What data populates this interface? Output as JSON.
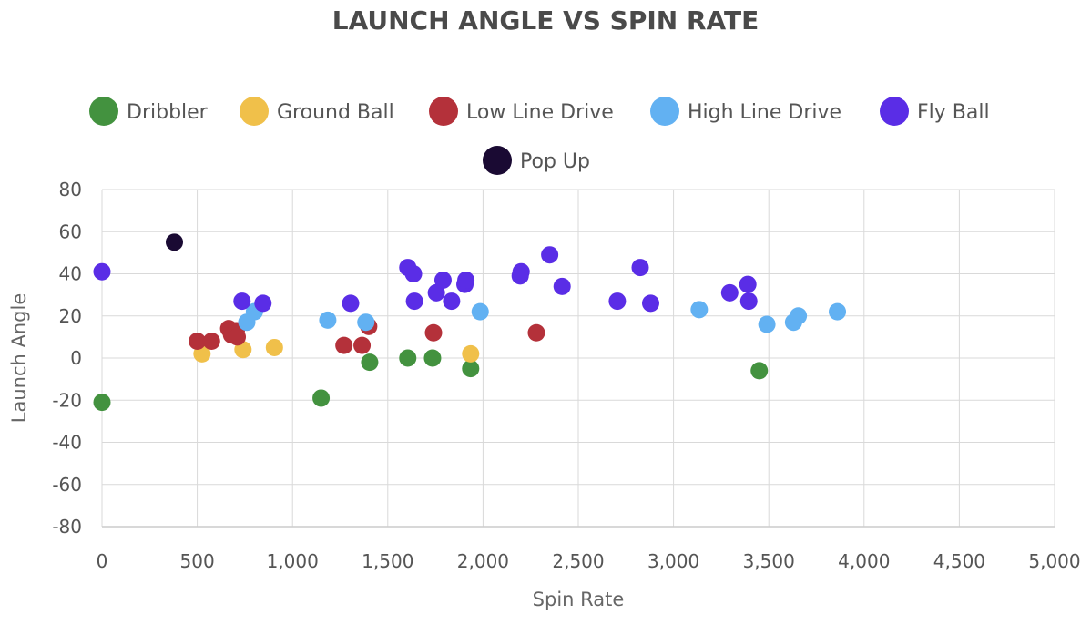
{
  "chart_data": {
    "type": "scatter",
    "title": "LAUNCH ANGLE VS SPIN RATE",
    "xlabel": "Spin Rate",
    "ylabel": "Launch Angle",
    "xlim": [
      0,
      5000
    ],
    "ylim": [
      -80,
      80
    ],
    "x_ticks": [
      0,
      500,
      1000,
      1500,
      2000,
      2500,
      3000,
      3500,
      4000,
      4500,
      5000
    ],
    "x_tick_labels": [
      "0",
      "500",
      "1,000",
      "1,500",
      "2,000",
      "2,500",
      "3,000",
      "3,500",
      "4,000",
      "4,500",
      "5,000"
    ],
    "y_ticks": [
      80,
      60,
      40,
      20,
      0,
      -20,
      -40,
      -60,
      -80
    ],
    "y_tick_labels": [
      "80",
      "60",
      "40",
      "20",
      "0",
      "-20",
      "-40",
      "-60",
      "-80"
    ],
    "grid": true,
    "legend_position": "top-center",
    "series": [
      {
        "name": "Dribbler",
        "color": "#43923f",
        "points": [
          [
            0,
            -21
          ],
          [
            1150,
            -19
          ],
          [
            1405,
            -2
          ],
          [
            1605,
            0
          ],
          [
            1735,
            0
          ],
          [
            1935,
            -5
          ],
          [
            3450,
            -6
          ]
        ]
      },
      {
        "name": "Ground Ball",
        "color": "#f0c04a",
        "points": [
          [
            525,
            2
          ],
          [
            740,
            4
          ],
          [
            905,
            5
          ],
          [
            1935,
            2
          ]
        ]
      },
      {
        "name": "Low Line Drive",
        "color": "#b4313a",
        "points": [
          [
            500,
            8
          ],
          [
            575,
            8
          ],
          [
            665,
            14
          ],
          [
            680,
            11
          ],
          [
            705,
            13
          ],
          [
            710,
            10
          ],
          [
            1270,
            6
          ],
          [
            1365,
            6
          ],
          [
            1400,
            15
          ],
          [
            1740,
            12
          ],
          [
            2280,
            12
          ]
        ]
      },
      {
        "name": "High Line Drive",
        "color": "#62b1f2",
        "points": [
          [
            760,
            17
          ],
          [
            800,
            22
          ],
          [
            1185,
            18
          ],
          [
            1385,
            17
          ],
          [
            1985,
            22
          ],
          [
            3135,
            23
          ],
          [
            3490,
            16
          ],
          [
            3630,
            17
          ],
          [
            3655,
            20
          ],
          [
            3860,
            22
          ]
        ]
      },
      {
        "name": "Fly Ball",
        "color": "#5a2de6",
        "points": [
          [
            0,
            41
          ],
          [
            735,
            27
          ],
          [
            845,
            26
          ],
          [
            1305,
            26
          ],
          [
            1605,
            43
          ],
          [
            1635,
            40
          ],
          [
            1640,
            27
          ],
          [
            1755,
            31
          ],
          [
            1790,
            37
          ],
          [
            1835,
            27
          ],
          [
            1905,
            35
          ],
          [
            1910,
            37
          ],
          [
            2195,
            39
          ],
          [
            2200,
            41
          ],
          [
            2350,
            49
          ],
          [
            2415,
            34
          ],
          [
            2705,
            27
          ],
          [
            2825,
            43
          ],
          [
            2880,
            26
          ],
          [
            3295,
            31
          ],
          [
            3390,
            35
          ],
          [
            3395,
            27
          ]
        ]
      },
      {
        "name": "Pop Up",
        "color": "#1a0a33",
        "points": [
          [
            380,
            55
          ]
        ]
      }
    ]
  }
}
